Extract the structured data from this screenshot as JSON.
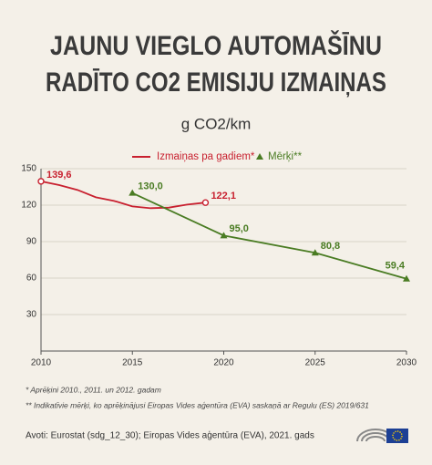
{
  "chart_data": {
    "type": "line",
    "title": [
      "JAUNU VIEGLO AUTOMAŠĪNU",
      "RADĪTO CO2 EMISIJU IZMAIŅAS"
    ],
    "subtitle": "g CO2/km",
    "xlim": [
      2010,
      2030
    ],
    "xticks": [
      2010,
      2015,
      2020,
      2025,
      2030
    ],
    "ylim": [
      0,
      150
    ],
    "yticks": [
      30,
      60,
      90,
      120,
      150
    ],
    "grid": true,
    "series": [
      {
        "name": "Izmaiņas pa gadiem*",
        "color": "#c8202f",
        "marker": "circle",
        "x": [
          2010,
          2011,
          2012,
          2013,
          2014,
          2015,
          2016,
          2017,
          2018,
          2019
        ],
        "values": [
          139.6,
          136.5,
          132.5,
          126.5,
          123.5,
          119,
          117.5,
          118,
          120.5,
          122.1
        ],
        "value_labels": [
          "139,6",
          null,
          null,
          null,
          null,
          null,
          null,
          null,
          null,
          "122,1"
        ]
      },
      {
        "name": "Mērķi**",
        "color": "#4a7c23",
        "marker": "triangle",
        "x": [
          2015,
          2020,
          2025,
          2030
        ],
        "values": [
          130.0,
          95.0,
          80.8,
          59.4
        ],
        "value_labels": [
          "130,0",
          "95,0",
          "80,8",
          "59,4"
        ]
      }
    ],
    "footnotes": [
      "* Aprēķini 2010., 2011. un 2012. gadam",
      "** Indikatīvie mērķi, ko aprēķinājusi Eiropas Vides aģentūra (EVA) saskaņā ar Regulu (ES) 2019/631"
    ],
    "source": "Avoti: Eurostat (sdg_12_30); Eiropas Vides aģentūra (EVA), 2021. gads"
  }
}
